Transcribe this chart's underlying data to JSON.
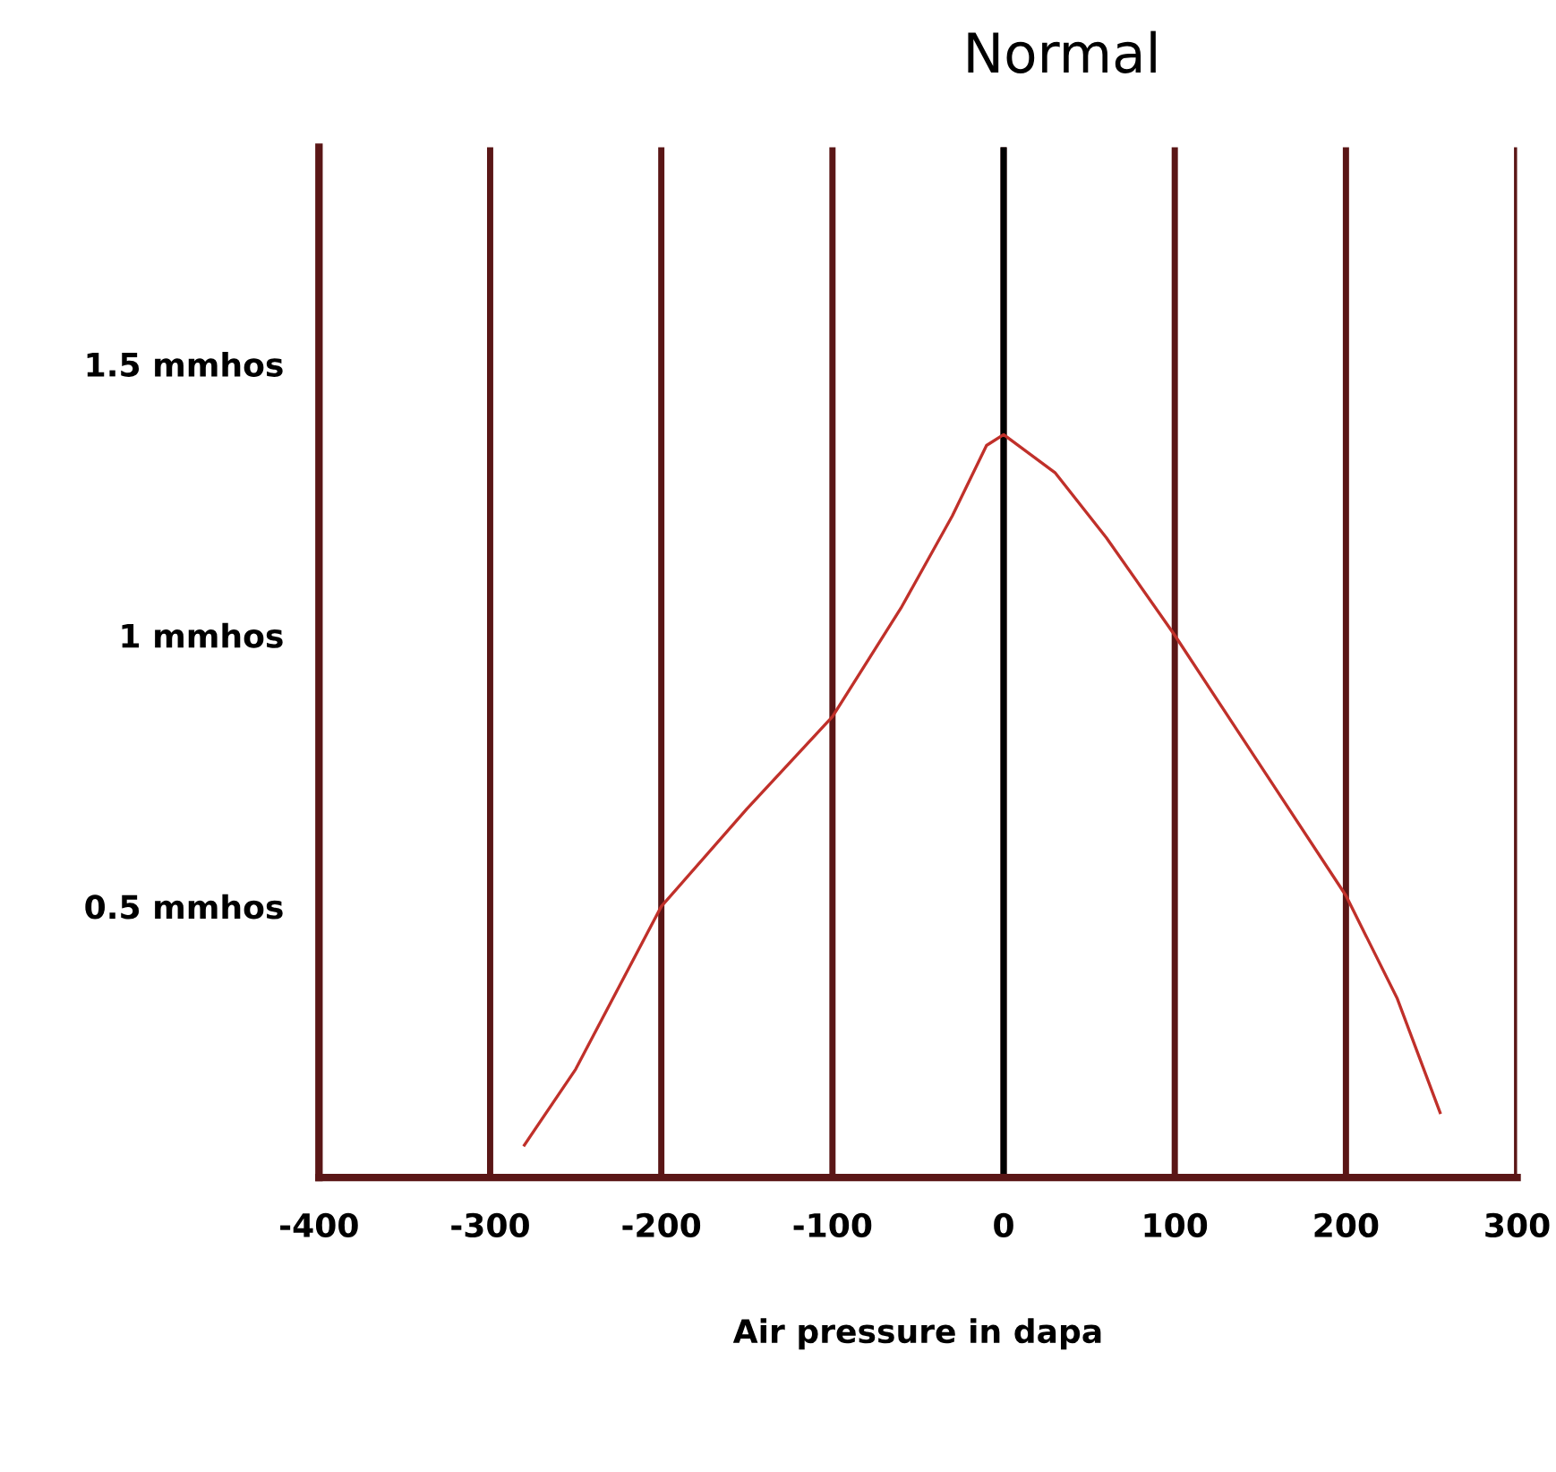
{
  "chart_data": {
    "type": "line",
    "title": "Normal",
    "xlabel": "Air pressure in dapa",
    "series": [
      {
        "color": "#c0302a",
        "x": [
          -280,
          -250,
          -200,
          -150,
          -100,
          -60,
          -30,
          -10,
          0,
          30,
          60,
          100,
          150,
          200,
          230,
          255
        ],
        "values": [
          0.06,
          0.2,
          0.5,
          0.68,
          0.85,
          1.05,
          1.22,
          1.35,
          1.37,
          1.3,
          1.18,
          1.0,
          0.76,
          0.52,
          0.33,
          0.12
        ]
      }
    ],
    "xlim": [
      -400,
      300
    ],
    "xticks": [
      -400,
      -300,
      -200,
      -100,
      0,
      100,
      200,
      300
    ],
    "ylim": [
      0,
      1.9
    ],
    "yticks": [
      {
        "value": 0.5,
        "label": "0.5 mmhos"
      },
      {
        "value": 1,
        "label": "1 mmhos"
      },
      {
        "value": 1.5,
        "label": "1.5 mmhos"
      }
    ],
    "ref_lines": [
      {
        "axis": "x",
        "value": 0,
        "color": "#000000"
      }
    ],
    "grid": "x",
    "marker": "none",
    "line_style": "solid",
    "legend": false
  }
}
